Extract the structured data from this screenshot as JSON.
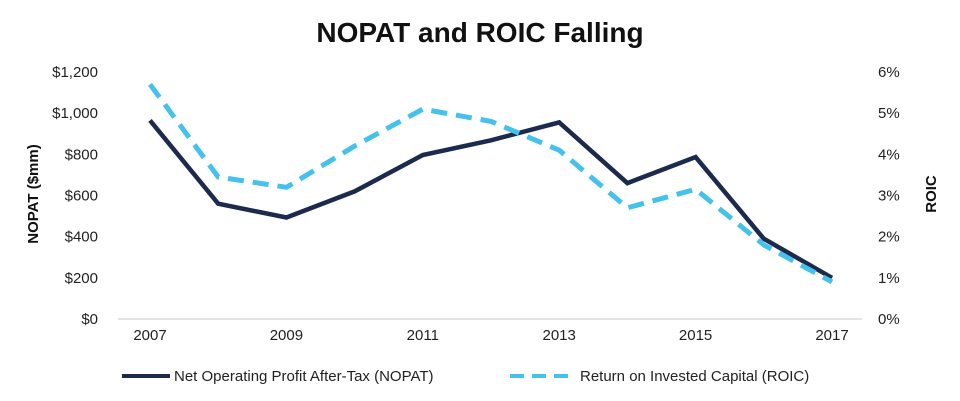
{
  "chart_data": {
    "type": "line",
    "title": "NOPAT and ROIC Falling",
    "x": [
      2007,
      2008,
      2009,
      2010,
      2011,
      2012,
      2013,
      2014,
      2015,
      2016,
      2017
    ],
    "x_tick_labels": [
      "2007",
      "2009",
      "2011",
      "2013",
      "2015",
      "2017"
    ],
    "ylabel_left": "NOPAT ($mm)",
    "ylabel_right": "ROIC",
    "ylim_left": [
      0,
      1200
    ],
    "ylim_right": [
      0,
      6
    ],
    "y_tick_labels_left": [
      "$0",
      "$200",
      "$400",
      "$600",
      "$800",
      "$1,000",
      "$1,200"
    ],
    "y_tick_labels_right": [
      "0%",
      "1%",
      "2%",
      "3%",
      "4%",
      "5%",
      "6%"
    ],
    "grid": false,
    "legend_position": "bottom",
    "series": [
      {
        "name": "Net Operating Profit After-Tax (NOPAT)",
        "axis": "left",
        "style": "solid",
        "color": "#1c2b4d",
        "values": [
          965,
          560,
          493,
          620,
          797,
          868,
          955,
          660,
          787,
          390,
          200
        ]
      },
      {
        "name": "Return on Invested Capital (ROIC)",
        "axis": "right",
        "style": "dashed",
        "color": "#44c1ec",
        "values": [
          5.7,
          3.45,
          3.2,
          4.2,
          5.1,
          4.8,
          4.1,
          2.7,
          3.15,
          1.8,
          0.9
        ]
      }
    ]
  }
}
